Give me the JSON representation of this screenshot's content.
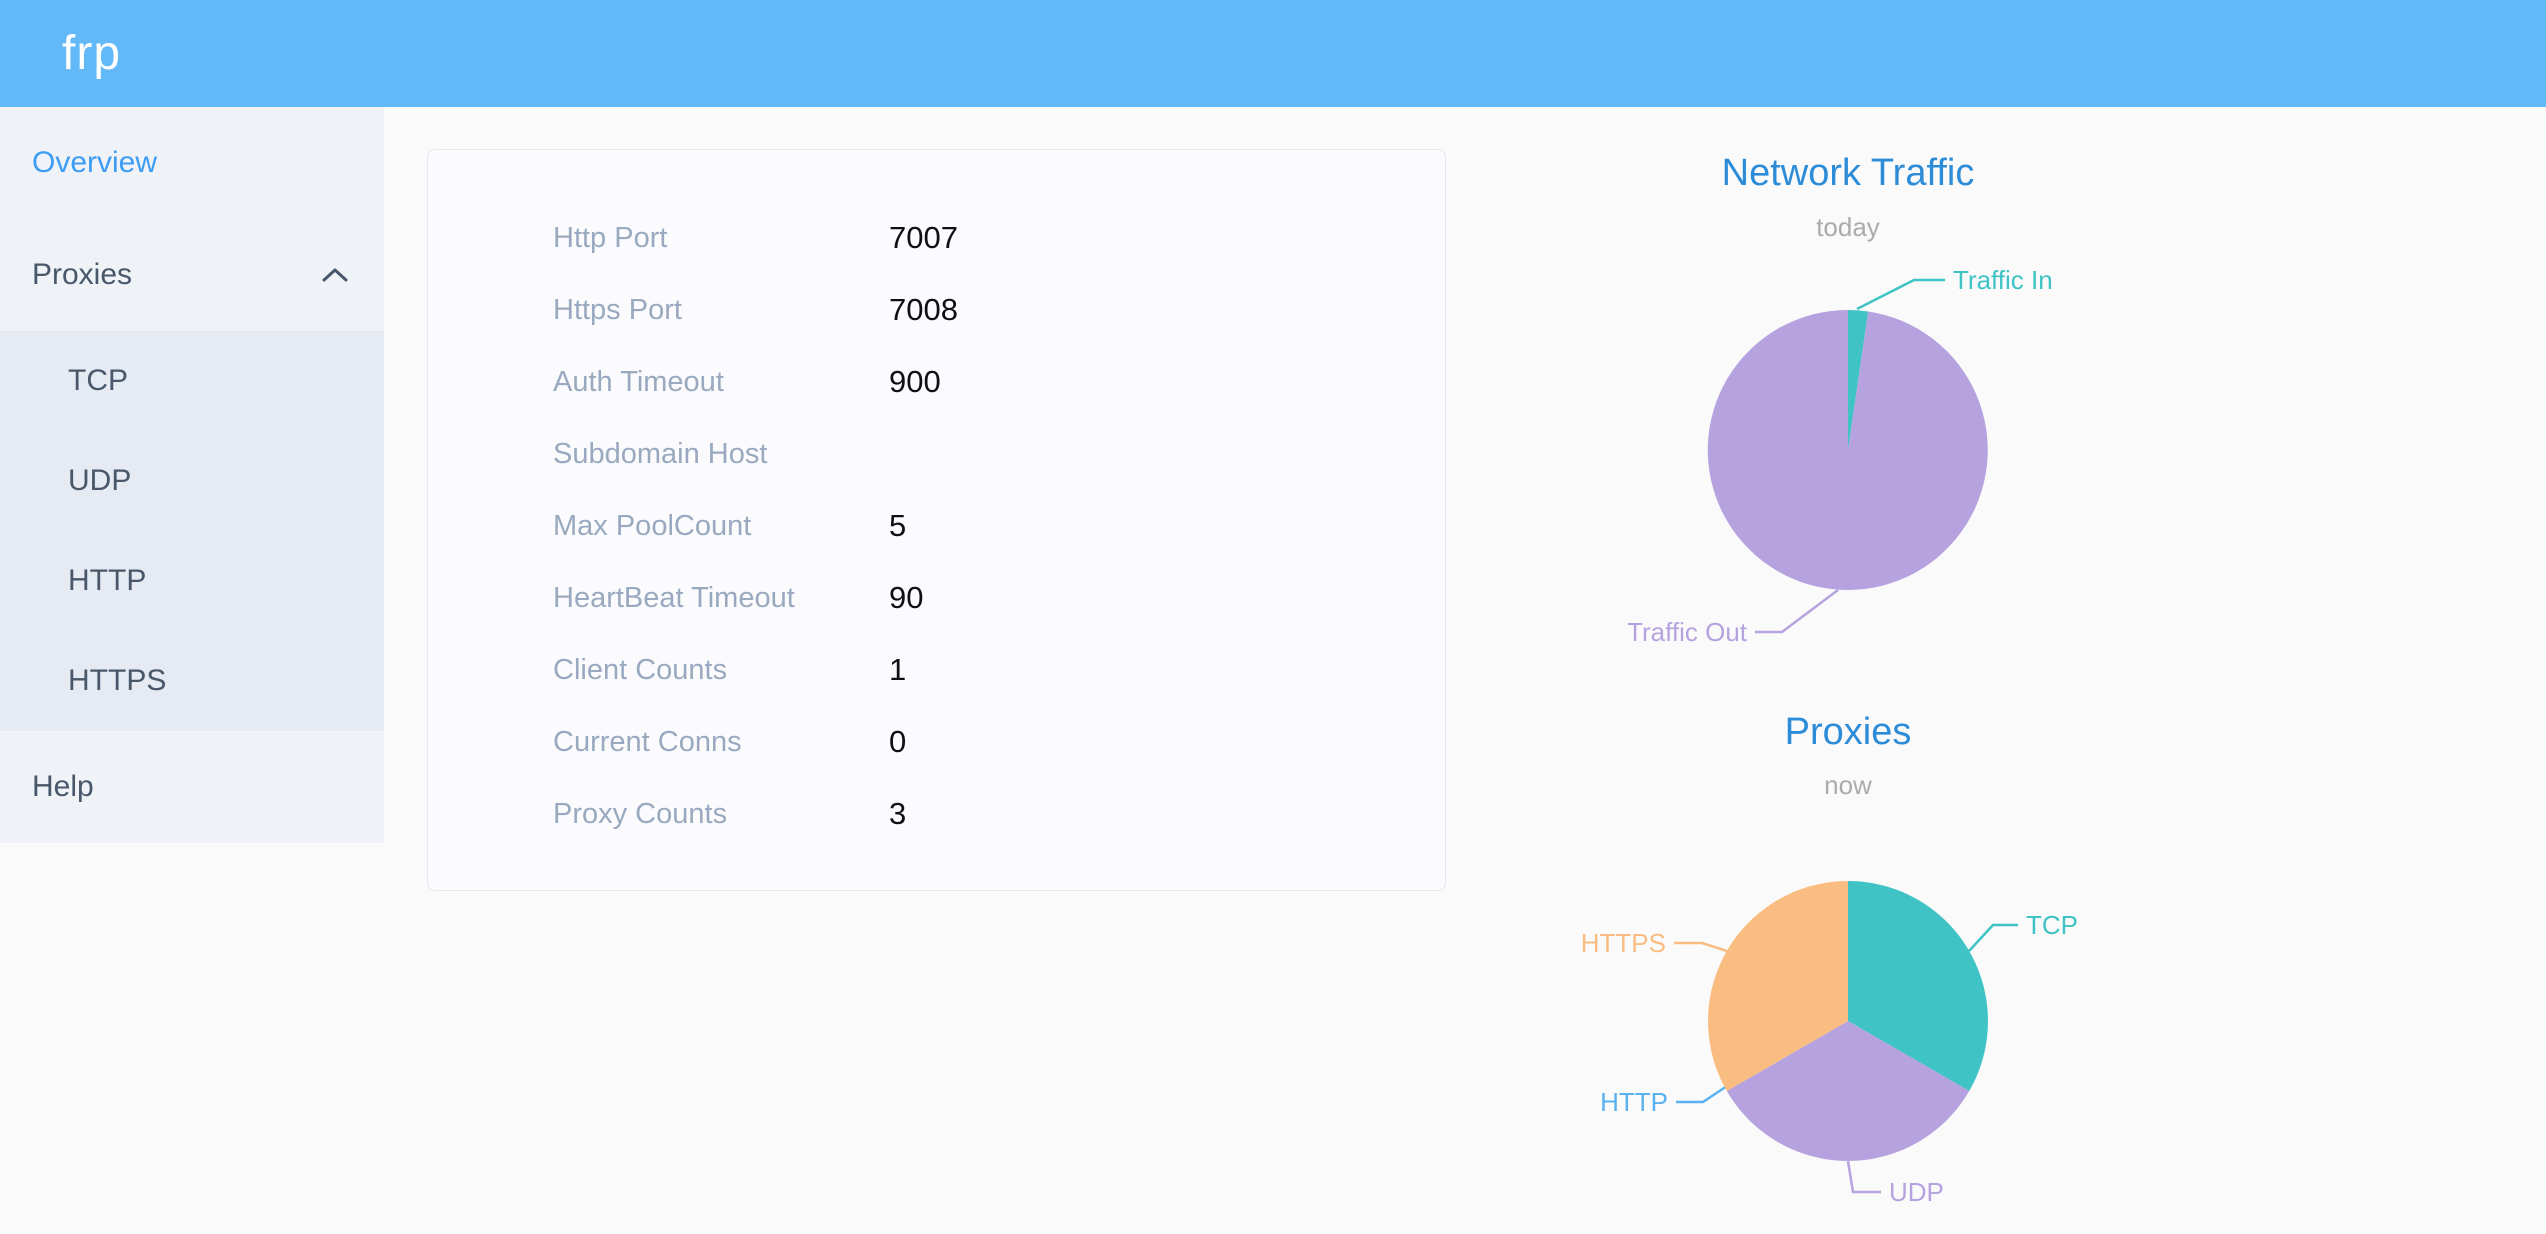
{
  "header": {
    "logo_text": "frp"
  },
  "sidebar": {
    "overview_label": "Overview",
    "proxies_label": "Proxies",
    "proxies_expanded": true,
    "proxies_children": [
      "TCP",
      "UDP",
      "HTTP",
      "HTTPS"
    ],
    "help_label": "Help",
    "active_item": "Overview"
  },
  "overview_panel": {
    "rows": [
      {
        "label": "Http Port",
        "value": "7007"
      },
      {
        "label": "Https Port",
        "value": "7008"
      },
      {
        "label": "Auth Timeout",
        "value": "900"
      },
      {
        "label": "Subdomain Host",
        "value": ""
      },
      {
        "label": "Max PoolCount",
        "value": "5"
      },
      {
        "label": "HeartBeat Timeout",
        "value": "90"
      },
      {
        "label": "Client Counts",
        "value": "1"
      },
      {
        "label": "Current Conns",
        "value": "0"
      },
      {
        "label": "Proxy Counts",
        "value": "3"
      }
    ]
  },
  "chart_data": [
    {
      "type": "pie",
      "title": "Network Traffic",
      "subtitle": "today",
      "value_unit": "percent of circle (estimated from pie angles)",
      "slices": [
        {
          "label": "Traffic In",
          "value": 2.3,
          "color": "#3fc3c4"
        },
        {
          "label": "Traffic Out",
          "value": 97.7,
          "color": "#b6a2de"
        }
      ],
      "start_angle_deg": 90,
      "direction": "clockwise",
      "legend": "none",
      "labels": "outside"
    },
    {
      "type": "pie",
      "title": "Proxies",
      "subtitle": "now",
      "value_unit": "proxy count",
      "slices": [
        {
          "label": "TCP",
          "value": 1,
          "color": "#3fc3c4"
        },
        {
          "label": "UDP",
          "value": 1,
          "color": "#b6a2de"
        },
        {
          "label": "HTTP",
          "value": 0,
          "color": "#5ab1ef"
        },
        {
          "label": "HTTPS",
          "value": 1,
          "color": "#fabd81"
        }
      ],
      "start_angle_deg": 90,
      "direction": "clockwise",
      "legend": "none",
      "labels": "outside"
    }
  ],
  "colors": {
    "header_bg": "#63b8f7",
    "sidebar_bg": "#eff2f7",
    "submenu_bg": "#e6eaf2",
    "menu_text": "#48576a",
    "active_menu_text": "#3d9cf4",
    "chart_title": "#2d8cd8",
    "chart_subtitle": "#ababab",
    "form_label": "#99a9bf",
    "form_value": "#0f1014",
    "pie_teal": "#3fc3c4",
    "pie_purple": "#b6a2de",
    "pie_blue": "#5ab1ef",
    "pie_orange": "#fabd81"
  }
}
